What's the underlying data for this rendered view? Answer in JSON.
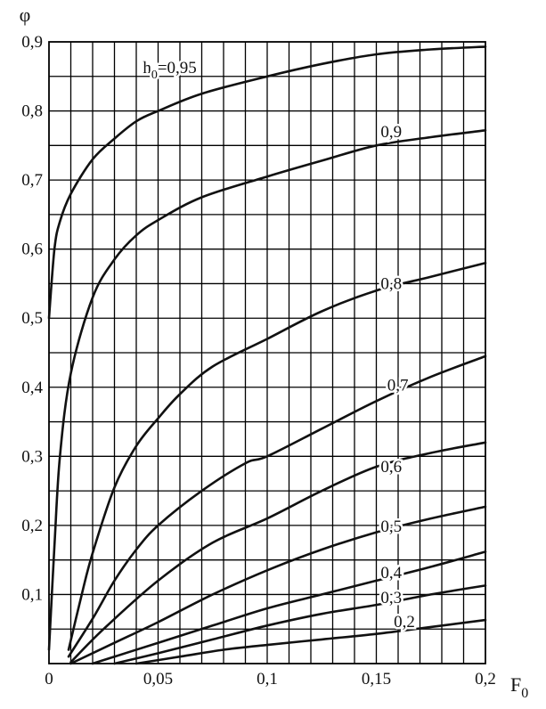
{
  "chart_data": {
    "type": "line",
    "xlabel": "F",
    "xlabel_sub": "0",
    "ylabel": "φ",
    "xlim": [
      0,
      0.2
    ],
    "ylim": [
      0,
      0.9
    ],
    "grid": true,
    "x_tick_labels": [
      "0",
      "0,05",
      "0,1",
      "0,15",
      "0,2"
    ],
    "y_tick_labels": [
      "0,1",
      "0,2",
      "0,3",
      "0,4",
      "0,5",
      "0,6",
      "0,7",
      "0,8",
      "0,9"
    ],
    "y_tick_values": [
      0.1,
      0.2,
      0.3,
      0.4,
      0.5,
      0.6,
      0.7,
      0.8,
      0.9
    ],
    "series": [
      {
        "label_prefix": "h",
        "label_sub": "0",
        "name": "=0,95",
        "label_at": [
          0.043,
          0.855
        ],
        "points": [
          [
            0.0,
            0.5
          ],
          [
            0.0025,
            0.6
          ],
          [
            0.005,
            0.64
          ],
          [
            0.01,
            0.68
          ],
          [
            0.02,
            0.73
          ],
          [
            0.03,
            0.76
          ],
          [
            0.04,
            0.785
          ],
          [
            0.05,
            0.8
          ],
          [
            0.07,
            0.825
          ],
          [
            0.1,
            0.85
          ],
          [
            0.125,
            0.868
          ],
          [
            0.15,
            0.882
          ],
          [
            0.175,
            0.889
          ],
          [
            0.2,
            0.893
          ]
        ]
      },
      {
        "name": "0,9",
        "label_at": [
          0.152,
          0.762
        ],
        "points": [
          [
            0.0,
            0.02
          ],
          [
            0.0025,
            0.17
          ],
          [
            0.005,
            0.3
          ],
          [
            0.01,
            0.42
          ],
          [
            0.02,
            0.53
          ],
          [
            0.03,
            0.585
          ],
          [
            0.04,
            0.62
          ],
          [
            0.05,
            0.642
          ],
          [
            0.07,
            0.675
          ],
          [
            0.1,
            0.705
          ],
          [
            0.125,
            0.728
          ],
          [
            0.15,
            0.75
          ],
          [
            0.175,
            0.762
          ],
          [
            0.2,
            0.772
          ]
        ]
      },
      {
        "name": "0,8",
        "label_at": [
          0.152,
          0.542
        ],
        "points": [
          [
            0.009,
            0.02
          ],
          [
            0.015,
            0.1
          ],
          [
            0.02,
            0.16
          ],
          [
            0.03,
            0.255
          ],
          [
            0.04,
            0.315
          ],
          [
            0.05,
            0.355
          ],
          [
            0.06,
            0.39
          ],
          [
            0.075,
            0.43
          ],
          [
            0.1,
            0.47
          ],
          [
            0.125,
            0.51
          ],
          [
            0.15,
            0.54
          ],
          [
            0.175,
            0.56
          ],
          [
            0.2,
            0.58
          ]
        ]
      },
      {
        "name": "0,7",
        "label_at": [
          0.155,
          0.395
        ],
        "points": [
          [
            0.009,
            0.01
          ],
          [
            0.02,
            0.065
          ],
          [
            0.03,
            0.12
          ],
          [
            0.04,
            0.165
          ],
          [
            0.05,
            0.2
          ],
          [
            0.07,
            0.25
          ],
          [
            0.09,
            0.29
          ],
          [
            0.1,
            0.3
          ],
          [
            0.125,
            0.34
          ],
          [
            0.15,
            0.38
          ],
          [
            0.175,
            0.415
          ],
          [
            0.2,
            0.445
          ]
        ]
      },
      {
        "name": "0,6",
        "label_at": [
          0.152,
          0.277
        ],
        "points": [
          [
            0.01,
            0.002
          ],
          [
            0.025,
            0.05
          ],
          [
            0.05,
            0.12
          ],
          [
            0.075,
            0.175
          ],
          [
            0.1,
            0.21
          ],
          [
            0.125,
            0.25
          ],
          [
            0.15,
            0.285
          ],
          [
            0.175,
            0.305
          ],
          [
            0.2,
            0.32
          ]
        ]
      },
      {
        "name": "0,5",
        "label_at": [
          0.152,
          0.191
        ],
        "points": [
          [
            0.01,
            0.0
          ],
          [
            0.03,
            0.03
          ],
          [
            0.05,
            0.06
          ],
          [
            0.075,
            0.1
          ],
          [
            0.1,
            0.135
          ],
          [
            0.125,
            0.165
          ],
          [
            0.15,
            0.19
          ],
          [
            0.175,
            0.21
          ],
          [
            0.2,
            0.227
          ]
        ]
      },
      {
        "name": "0,4",
        "label_at": [
          0.152,
          0.124
        ],
        "points": [
          [
            0.02,
            0.0
          ],
          [
            0.05,
            0.03
          ],
          [
            0.075,
            0.055
          ],
          [
            0.1,
            0.08
          ],
          [
            0.125,
            0.1
          ],
          [
            0.15,
            0.12
          ],
          [
            0.175,
            0.14
          ],
          [
            0.2,
            0.162
          ]
        ]
      },
      {
        "name": "0,3",
        "label_at": [
          0.152,
          0.088
        ],
        "points": [
          [
            0.03,
            0.0
          ],
          [
            0.05,
            0.015
          ],
          [
            0.075,
            0.035
          ],
          [
            0.1,
            0.055
          ],
          [
            0.125,
            0.072
          ],
          [
            0.15,
            0.085
          ],
          [
            0.175,
            0.1
          ],
          [
            0.2,
            0.113
          ]
        ]
      },
      {
        "name": "0,2",
        "label_at": [
          0.158,
          0.053
        ],
        "points": [
          [
            0.04,
            0.0
          ],
          [
            0.06,
            0.01
          ],
          [
            0.08,
            0.02
          ],
          [
            0.1,
            0.027
          ],
          [
            0.125,
            0.035
          ],
          [
            0.15,
            0.043
          ],
          [
            0.175,
            0.053
          ],
          [
            0.2,
            0.063
          ]
        ]
      }
    ]
  }
}
